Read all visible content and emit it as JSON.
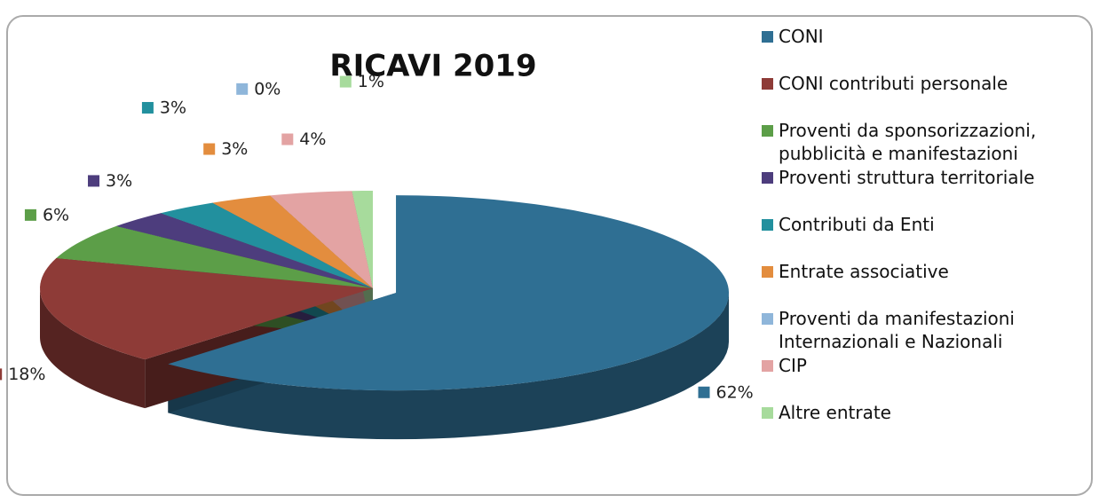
{
  "chart_data": {
    "type": "pie",
    "title": "RICAVI 2019",
    "categories": [
      "CONI",
      "CONI contributi personale",
      "Proventi da sponsorizzazioni, pubblicità e manifestazioni",
      "Proventi struttura territoriale",
      "Contributi da Enti",
      "Entrate associative",
      "Proventi da manifestazioni Internazionali e Nazionali",
      "CIP",
      "Altre entrate"
    ],
    "values": [
      62,
      18,
      6,
      3,
      3,
      3,
      0,
      4,
      1
    ],
    "value_labels": [
      "62%",
      "18%",
      "6%",
      "3%",
      "3%",
      "3%",
      "0%",
      "4%",
      "1%"
    ],
    "colors": [
      "#2f6f93",
      "#8e3b37",
      "#5c9e48",
      "#4d3d7d",
      "#22909e",
      "#e38d3e",
      "#8fb6da",
      "#e3a3a3",
      "#a7db9c"
    ],
    "legend": "right"
  }
}
